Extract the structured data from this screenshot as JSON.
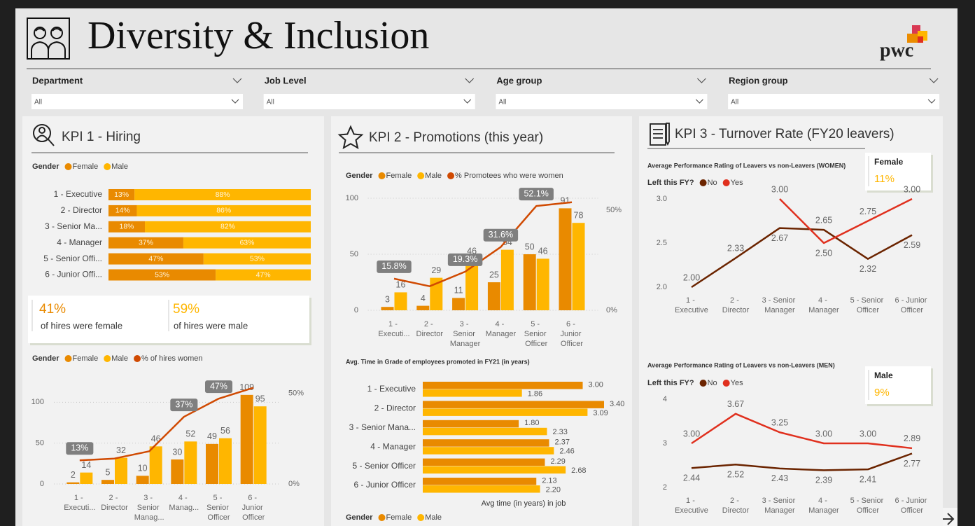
{
  "header": {
    "title": "Diversity & Inclusion",
    "logo": "pwc"
  },
  "filters": [
    {
      "label": "Department",
      "value": "All"
    },
    {
      "label": "Job Level",
      "value": "All"
    },
    {
      "label": "Age group",
      "value": "All"
    },
    {
      "label": "Region group",
      "value": "All"
    }
  ],
  "panels": [
    {
      "title": "KPI 1 - Hiring"
    },
    {
      "title": "KPI 2 - Promotions (this year)"
    },
    {
      "title": "KPI 3 - Turnover Rate (FY20 leavers)"
    }
  ],
  "cards": [
    {
      "items": [
        {
          "value": "41%",
          "text": "of hires were female"
        },
        {
          "value": "59%",
          "text": "of hires were male"
        }
      ]
    },
    {
      "title": "Female",
      "value": "11%"
    },
    {
      "title": "Male",
      "value": "9%"
    }
  ],
  "chart_data": [
    {
      "type": "bar",
      "orientation": "horizontal",
      "stacked": true,
      "legend_title": "Gender",
      "categories": [
        "1 - Executive",
        "2 - Director",
        "3 - Senior Ma...",
        "4 - Manager",
        "5 - Senior Offi...",
        "6 - Junior Offi..."
      ],
      "series": [
        {
          "name": "Female",
          "color": "#e98a00",
          "values": [
            13,
            14,
            18,
            37,
            47,
            53
          ],
          "value_labels": [
            "13%",
            "14%",
            "18%",
            "37%",
            "47%",
            "53%"
          ]
        },
        {
          "name": "Male",
          "color": "#ffb600",
          "values": [
            88,
            86,
            82,
            63,
            53,
            47
          ],
          "value_labels": [
            "88%",
            "86%",
            "82%",
            "63%",
            "53%",
            "47%"
          ]
        }
      ]
    },
    {
      "type": "combo",
      "legend_title": "Gender",
      "categories": [
        "1 - Executi...",
        "2 - Director",
        "3 - Senior Manag...",
        "4 - Manag...",
        "5 - Senior Officer",
        "6 - Junior Officer"
      ],
      "ylim": [
        0,
        120
      ],
      "yticks": [
        0,
        50,
        100
      ],
      "y2lim": [
        0,
        54
      ],
      "y2ticks": [
        {
          "value": 0,
          "label": "0%"
        },
        {
          "value": 50,
          "label": "50%"
        }
      ],
      "grid": true,
      "series": [
        {
          "name": "Female",
          "color": "#e98a00",
          "type": "bar",
          "values": [
            2,
            5,
            10,
            30,
            49,
            109
          ]
        },
        {
          "name": "Male",
          "color": "#ffb600",
          "type": "bar",
          "values": [
            14,
            32,
            46,
            52,
            56,
            95
          ]
        },
        {
          "name": "% of hires women",
          "color": "#d04a02",
          "type": "line",
          "axis": "y2",
          "values": [
            13,
            14,
            18,
            37,
            47,
            53
          ],
          "value_labels": [
            "13%",
            null,
            null,
            "37%",
            "47%",
            null
          ]
        }
      ]
    },
    {
      "type": "combo",
      "legend_title": "Gender",
      "categories": [
        "1 - Executi...",
        "2 - Director",
        "3 - Senior Manager",
        "4 - Manager",
        "5 - Senior Officer",
        "6 - Junior Officer"
      ],
      "ylim": [
        0,
        100
      ],
      "yticks": [
        0,
        50,
        100
      ],
      "y2lim": [
        0,
        56
      ],
      "y2ticks": [
        {
          "value": 0,
          "label": "0%"
        },
        {
          "value": 50,
          "label": "50%"
        }
      ],
      "grid": true,
      "series": [
        {
          "name": "Female",
          "color": "#e98a00",
          "type": "bar",
          "values": [
            3,
            4,
            11,
            25,
            50,
            91
          ]
        },
        {
          "name": "Male",
          "color": "#ffb600",
          "type": "bar",
          "values": [
            16,
            29,
            46,
            54,
            46,
            78
          ]
        },
        {
          "name": "% Promotees who were women",
          "color": "#d04a02",
          "type": "line",
          "axis": "y2",
          "values": [
            15.8,
            12,
            19.3,
            31.6,
            52.1,
            54
          ],
          "value_labels": [
            "15.8%",
            null,
            "19.3%",
            "31.6%",
            "52.1%",
            null
          ]
        }
      ]
    },
    {
      "type": "bar",
      "orientation": "horizontal",
      "stacked": false,
      "title": "Avg. Time in Grade of employees promoted in FY21 (in years)",
      "x_label": "Avg time (in years) in job",
      "legend_title": "Gender",
      "categories": [
        "1 - Executive",
        "2 - Director",
        "3 - Senior Mana...",
        "4 - Manager",
        "5 - Senior Officer",
        "6 - Junior Officer"
      ],
      "series": [
        {
          "name": "Female",
          "color": "#e98a00",
          "values": [
            3,
            3.4,
            1.8,
            2.37,
            2.29,
            2.13
          ],
          "value_labels": [
            "3.00",
            "3.40",
            "1.80",
            "2.37",
            "2.29",
            "2.13"
          ]
        },
        {
          "name": "Male",
          "color": "#ffb600",
          "values": [
            1.86,
            3.09,
            2.33,
            2.46,
            2.68,
            2.2
          ],
          "value_labels": [
            "1.86",
            "3.09",
            "2.33",
            "2.46",
            "2.68",
            "2.20"
          ]
        }
      ]
    },
    {
      "type": "line",
      "title": "Average Performance Rating of Leavers vs non-Leavers (WOMEN)",
      "legend_title": "Left this FY?",
      "categories": [
        "1 - Executive",
        "2 - Director",
        "3 - Senior Manager",
        "4 - Manager",
        "5 - Senior Officer",
        "6 - Junior Officer"
      ],
      "ylim": [
        2,
        3
      ],
      "yticks": [
        {
          "value": 3,
          "label": "3.0"
        },
        2.5,
        {
          "value": 2,
          "label": "2.0"
        }
      ],
      "series": [
        {
          "name": "No",
          "color": "#6b2400",
          "values": [
            2,
            2.33,
            2.67,
            2.65,
            2.32,
            2.59
          ],
          "value_labels": [
            "2.00",
            "2.33",
            "2.67",
            "2.65",
            "2.32",
            "2.59"
          ]
        },
        {
          "name": "Yes",
          "color": "#e0301e",
          "values": [
            null,
            null,
            3,
            2.5,
            2.75,
            3
          ],
          "value_labels": [
            null,
            null,
            "3.00",
            "2.50",
            "2.75",
            "3.00"
          ]
        }
      ]
    },
    {
      "type": "line",
      "title": "Average Performance Rating of Leavers vs non-Leavers (MEN)",
      "legend_title": "Left this FY?",
      "categories": [
        "1 - Executive",
        "2 - Director",
        "3 - Senior Manager",
        "4 - Manager",
        "5 - Senior Officer",
        "6 - Junior Officer"
      ],
      "ylim": [
        2,
        4
      ],
      "yticks": [
        4,
        3,
        2
      ],
      "series": [
        {
          "name": "No",
          "color": "#6b2400",
          "values": [
            2.44,
            2.52,
            2.43,
            2.39,
            2.41,
            2.77
          ],
          "value_labels": [
            "2.44",
            "2.52",
            "2.43",
            "2.39",
            "2.41",
            "2.77"
          ]
        },
        {
          "name": "Yes",
          "color": "#e0301e",
          "values": [
            3,
            3.67,
            3.25,
            3,
            3,
            2.89
          ],
          "value_labels": [
            "3.00",
            "3.67",
            "3.25",
            "3.00",
            "3.00",
            "2.89"
          ]
        }
      ]
    }
  ]
}
